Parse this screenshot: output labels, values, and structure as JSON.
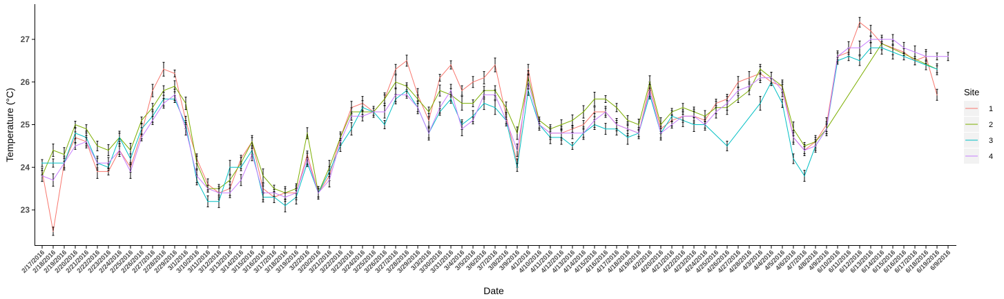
{
  "chart_data": {
    "type": "line",
    "title": "",
    "xlabel": "Date",
    "ylabel": "Temperature (°C)",
    "ylim": [
      22.2,
      27.8
    ],
    "yticks": [
      23,
      24,
      25,
      26,
      27
    ],
    "grid": false,
    "legend": {
      "title": "Site",
      "position": "right"
    },
    "categories": [
      "2/17/2016",
      "2/18/2016",
      "2/19/2016",
      "2/20/2016",
      "2/21/2016",
      "2/22/2016",
      "2/23/2016",
      "2/24/2016",
      "2/25/2016",
      "2/26/2016",
      "2/27/2016",
      "2/28/2016",
      "2/29/2016",
      "3/1/2016",
      "3/10/2016",
      "3/11/2016",
      "3/12/2016",
      "3/13/2016",
      "3/14/2016",
      "3/15/2016",
      "3/16/2016",
      "3/17/2016",
      "3/18/2016",
      "3/19/2016",
      "3/2/2016",
      "3/20/2016",
      "3/21/2016",
      "3/22/2016",
      "3/23/2016",
      "3/24/2016",
      "3/25/2016",
      "3/26/2016",
      "3/27/2016",
      "3/28/2016",
      "3/29/2016",
      "3/3/2016",
      "3/30/2016",
      "3/31/2016",
      "3/4/2016",
      "3/5/2016",
      "3/6/2016",
      "3/7/2016",
      "3/8/2016",
      "3/9/2016",
      "4/1/2016",
      "4/10/2016",
      "4/11/2016",
      "4/12/2016",
      "4/13/2016",
      "4/14/2016",
      "4/15/2016",
      "4/16/2016",
      "4/17/2016",
      "4/18/2016",
      "4/19/2016",
      "4/2/2016",
      "4/20/2016",
      "4/21/2016",
      "4/22/2016",
      "4/23/2016",
      "4/24/2016",
      "4/25/2016",
      "4/26/2016",
      "4/27/2016",
      "4/28/2016",
      "4/3/2016",
      "4/4/2016",
      "4/5/2016",
      "4/6/2016",
      "4/7/2016",
      "4/8/2016",
      "4/9/2016",
      "6/10/2016",
      "6/11/2016",
      "6/12/2016",
      "6/13/2016",
      "6/14/2016",
      "6/15/2016",
      "6/16/2016",
      "6/17/2016",
      "6/18/2016",
      "6/19/2016",
      "6/9/2016"
    ],
    "series": [
      {
        "name": "1",
        "color": "#F8766D",
        "values": [
          23.9,
          22.5,
          24.1,
          24.7,
          24.6,
          23.9,
          23.9,
          24.4,
          24.0,
          24.8,
          25.8,
          26.3,
          26.2,
          25.1,
          24.2,
          23.6,
          23.4,
          23.5,
          24.2,
          24.6,
          23.5,
          23.3,
          23.4,
          23.4,
          24.3,
          23.4,
          23.8,
          24.7,
          25.4,
          25.5,
          25.3,
          25.6,
          26.3,
          26.5,
          25.7,
          25.1,
          26.1,
          26.4,
          25.8,
          26.0,
          26.1,
          26.4,
          25.2,
          24.1,
          26.3,
          25.0,
          24.8,
          24.8,
          24.9,
          25.0,
          25.3,
          25.3,
          25.0,
          24.9,
          24.8,
          25.9,
          24.9,
          25.1,
          25.2,
          25.2,
          25.1,
          25.5,
          25.6,
          26.0,
          26.1,
          26.2,
          26.0,
          25.9,
          24.7,
          24.4,
          24.6,
          25.0,
          26.6,
          26.7,
          27.4,
          27.2,
          26.9,
          26.8,
          26.7,
          26.5,
          26.6,
          25.7,
          null
        ]
      },
      {
        "name": "2",
        "color": "#7CAE00",
        "values": [
          23.8,
          24.4,
          24.3,
          25.0,
          24.9,
          24.5,
          24.4,
          24.7,
          24.4,
          25.1,
          25.4,
          25.8,
          25.9,
          25.5,
          24.1,
          23.5,
          23.5,
          23.7,
          24.1,
          24.6,
          23.8,
          23.5,
          23.4,
          23.5,
          24.8,
          23.4,
          24.0,
          24.7,
          25.3,
          25.3,
          25.3,
          25.6,
          26.0,
          25.9,
          25.6,
          25.3,
          25.8,
          25.7,
          25.5,
          25.5,
          25.8,
          25.8,
          25.4,
          24.8,
          26.1,
          25.1,
          24.9,
          25.0,
          25.1,
          25.3,
          25.6,
          25.6,
          25.4,
          25.1,
          25.0,
          26.0,
          25.0,
          25.3,
          25.4,
          25.3,
          25.2,
          25.4,
          25.4,
          25.6,
          25.8,
          26.3,
          26.1,
          25.9,
          24.9,
          24.5,
          24.6,
          24.9,
          null,
          null,
          null,
          null,
          26.9,
          null,
          null,
          null,
          null,
          26.3,
          null
        ]
      },
      {
        "name": "3",
        "color": "#00BFC4",
        "values": [
          24.1,
          24.1,
          24.1,
          24.8,
          24.7,
          24.1,
          24.0,
          24.7,
          24.2,
          24.9,
          25.2,
          25.6,
          25.6,
          25.0,
          23.7,
          23.2,
          23.2,
          24.0,
          24.0,
          24.4,
          23.3,
          23.3,
          23.1,
          23.3,
          24.1,
          23.4,
          23.9,
          24.5,
          24.9,
          25.4,
          25.3,
          25.0,
          25.6,
          25.8,
          25.4,
          24.8,
          25.3,
          25.6,
          25.0,
          25.2,
          25.5,
          25.4,
          25.1,
          24.0,
          25.8,
          25.0,
          24.7,
          24.7,
          24.5,
          24.8,
          25.0,
          24.9,
          24.9,
          24.7,
          24.8,
          25.7,
          24.8,
          25.2,
          25.1,
          25.0,
          25.0,
          null,
          24.5,
          null,
          null,
          25.5,
          26.0,
          25.5,
          24.2,
          23.8,
          24.5,
          24.9,
          26.5,
          26.6,
          26.5,
          26.8,
          26.8,
          26.7,
          26.6,
          26.5,
          26.4,
          26.3,
          null
        ]
      },
      {
        "name": "4",
        "color": "#C77CFF",
        "values": [
          23.8,
          23.7,
          24.1,
          24.5,
          24.6,
          24.1,
          24.1,
          24.4,
          23.9,
          24.7,
          25.1,
          25.5,
          25.7,
          24.9,
          23.8,
          23.5,
          23.4,
          23.4,
          23.7,
          24.3,
          23.4,
          23.4,
          23.3,
          23.4,
          24.2,
          23.4,
          23.7,
          24.6,
          25.2,
          25.2,
          25.3,
          25.3,
          25.7,
          25.7,
          25.4,
          24.8,
          25.4,
          25.8,
          24.9,
          25.1,
          25.7,
          25.7,
          25.1,
          24.4,
          26.0,
          25.0,
          24.8,
          24.8,
          24.8,
          24.8,
          25.1,
          25.3,
          25.0,
          24.9,
          24.8,
          25.8,
          24.8,
          25.0,
          25.2,
          25.2,
          25.0,
          25.3,
          25.5,
          25.8,
          25.9,
          26.1,
          26.1,
          25.8,
          24.7,
          24.4,
          24.5,
          24.9,
          26.6,
          26.8,
          26.8,
          27.0,
          27.0,
          27.0,
          26.8,
          26.7,
          26.6,
          26.6,
          26.6
        ]
      }
    ]
  }
}
